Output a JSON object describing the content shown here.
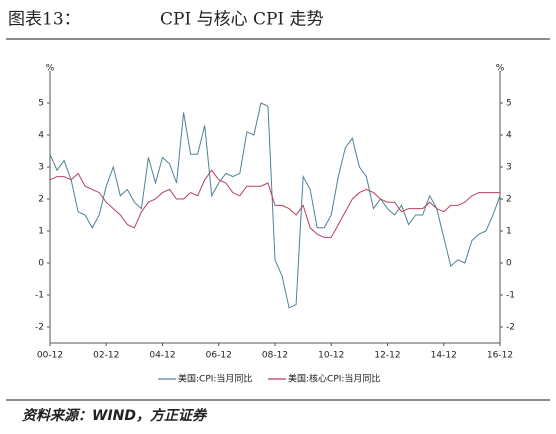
{
  "figure_label": "图表13：",
  "source": "资料来源：WIND，方正证券",
  "chart_data": {
    "type": "line",
    "title": "CPI 与核心 CPI 走势",
    "y_unit": "%",
    "categories": [
      "00-12",
      null,
      null,
      null,
      null,
      null,
      null,
      null,
      "02-12",
      null,
      null,
      null,
      null,
      null,
      null,
      null,
      "04-12",
      null,
      null,
      null,
      null,
      null,
      null,
      null,
      "06-12",
      null,
      null,
      null,
      null,
      null,
      null,
      null,
      "08-12",
      null,
      null,
      null,
      null,
      null,
      null,
      null,
      "10-12",
      null,
      null,
      null,
      null,
      null,
      null,
      null,
      "12-12",
      null,
      null,
      null,
      null,
      null,
      null,
      null,
      "14-12",
      null,
      null,
      null,
      null,
      null,
      null,
      null,
      "16-12"
    ],
    "series": [
      {
        "name": "美国:CPI:当月同比",
        "color": "#4d8296",
        "values": [
          3.4,
          2.9,
          3.2,
          2.6,
          1.6,
          1.5,
          1.1,
          1.5,
          2.4,
          3.0,
          2.1,
          2.3,
          1.9,
          1.7,
          3.3,
          2.5,
          3.3,
          3.1,
          2.5,
          4.7,
          3.4,
          3.4,
          4.3,
          2.1,
          2.5,
          2.8,
          2.7,
          2.8,
          4.1,
          4.0,
          5.0,
          4.9,
          0.1,
          -0.4,
          -1.4,
          -1.3,
          2.7,
          2.3,
          1.1,
          1.1,
          1.5,
          2.7,
          3.6,
          3.9,
          3.0,
          2.7,
          1.7,
          2.0,
          1.7,
          1.5,
          1.8,
          1.2,
          1.5,
          1.5,
          2.1,
          1.7,
          0.8,
          -0.1,
          0.1,
          0.0,
          0.7,
          0.9,
          1.0,
          1.5,
          2.1
        ]
      },
      {
        "name": "美国:核心CPI:当月同比",
        "color": "#b8405e",
        "values": [
          2.6,
          2.7,
          2.7,
          2.6,
          2.8,
          2.4,
          2.3,
          2.2,
          1.9,
          1.7,
          1.5,
          1.2,
          1.1,
          1.6,
          1.9,
          2.0,
          2.2,
          2.3,
          2.0,
          2.0,
          2.2,
          2.1,
          2.6,
          2.9,
          2.6,
          2.5,
          2.2,
          2.1,
          2.4,
          2.4,
          2.4,
          2.5,
          1.8,
          1.8,
          1.7,
          1.5,
          1.8,
          1.1,
          0.9,
          0.8,
          0.8,
          1.2,
          1.6,
          2.0,
          2.2,
          2.3,
          2.2,
          2.0,
          1.9,
          1.9,
          1.6,
          1.7,
          1.7,
          1.7,
          1.9,
          1.7,
          1.6,
          1.8,
          1.8,
          1.9,
          2.1,
          2.2,
          2.2,
          2.2,
          2.2
        ]
      }
    ],
    "ylim": [
      -2.5,
      6
    ],
    "yticks": [
      -2,
      -1,
      0,
      1,
      2,
      3,
      4,
      5
    ],
    "grid": false
  }
}
